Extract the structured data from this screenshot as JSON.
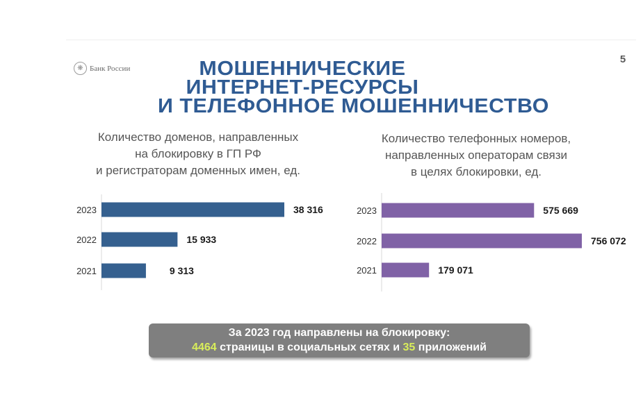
{
  "header": {
    "logo_text": "Банк России",
    "page_number": "5",
    "title_lines": [
      "МОШЕННИЧЕСКИЕ",
      "ИНТЕРНЕТ-РЕСУРСЫ",
      "И ТЕЛЕФОННОЕ МОШЕННИЧЕСТВО"
    ]
  },
  "colors": {
    "left_bars": "#35608f",
    "right_bars": "#8062a6",
    "title": "#2f5b93",
    "banner_bg": "#7f7f7f",
    "highlight": "#d9ee5a"
  },
  "chart_data": [
    {
      "type": "bar",
      "orientation": "horizontal",
      "title_lines": [
        "Количество доменов, направленных",
        "на блокировку в ГП РФ",
        "и регистраторам доменных имен, ед."
      ],
      "categories": [
        "2023",
        "2022",
        "2021"
      ],
      "values": [
        38316,
        15933,
        9313
      ],
      "labels": [
        "38 316",
        "15 933",
        "9 313"
      ]
    },
    {
      "type": "bar",
      "orientation": "horizontal",
      "title_lines": [
        "Количество телефонных номеров,",
        "направленных операторам связи",
        "в целях блокировки, ед."
      ],
      "categories": [
        "2023",
        "2022",
        "2021"
      ],
      "values": [
        575669,
        756072,
        179071
      ],
      "labels": [
        "575 669",
        "756 072",
        "179 071"
      ]
    }
  ],
  "banner": {
    "line1": "За 2023 год направлены на блокировку:",
    "count_pages": "4464",
    "pages_text": " страницы в социальных сетях и ",
    "count_apps": "35",
    "apps_text": " приложений"
  }
}
